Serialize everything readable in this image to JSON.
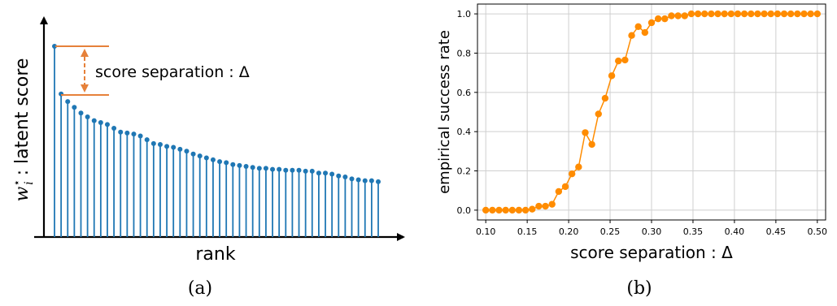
{
  "chart_data": [
    {
      "type": "stem",
      "panel_label": "(a)",
      "xlabel": "rank",
      "ylabel_symbol": "w",
      "ylabel_sub": "i",
      "ylabel_sup": "⋆",
      "ylabel_text": " : latent score",
      "annotation": "score separation : Δ",
      "values": [
        1.0,
        0.75,
        0.71,
        0.68,
        0.65,
        0.63,
        0.61,
        0.6,
        0.59,
        0.57,
        0.55,
        0.545,
        0.54,
        0.53,
        0.51,
        0.49,
        0.485,
        0.475,
        0.47,
        0.46,
        0.45,
        0.435,
        0.425,
        0.415,
        0.405,
        0.395,
        0.39,
        0.38,
        0.375,
        0.37,
        0.365,
        0.36,
        0.36,
        0.355,
        0.355,
        0.35,
        0.35,
        0.35,
        0.345,
        0.345,
        0.335,
        0.335,
        0.33,
        0.32,
        0.315,
        0.305,
        0.3,
        0.295,
        0.295,
        0.29
      ],
      "colors": {
        "stem": "#1f77b4",
        "annotation": "#e6813a",
        "axis": "#000000"
      }
    },
    {
      "type": "line",
      "panel_label": "(b)",
      "xlabel": "score separation : Δ",
      "ylabel": "empirical success rate",
      "xlim": [
        0.09,
        0.51
      ],
      "ylim": [
        -0.05,
        1.05
      ],
      "xticks": [
        "0.10",
        "0.15",
        "0.20",
        "0.25",
        "0.30",
        "0.35",
        "0.40",
        "0.45",
        "0.50"
      ],
      "yticks": [
        "0.0",
        "0.2",
        "0.4",
        "0.6",
        "0.8",
        "1.0"
      ],
      "grid": true,
      "x": [
        0.1,
        0.108,
        0.116,
        0.124,
        0.132,
        0.14,
        0.148,
        0.156,
        0.164,
        0.172,
        0.18,
        0.188,
        0.196,
        0.204,
        0.212,
        0.22,
        0.228,
        0.236,
        0.244,
        0.252,
        0.26,
        0.268,
        0.276,
        0.284,
        0.292,
        0.3,
        0.308,
        0.316,
        0.324,
        0.332,
        0.34,
        0.348,
        0.356,
        0.364,
        0.372,
        0.38,
        0.388,
        0.396,
        0.404,
        0.412,
        0.42,
        0.428,
        0.436,
        0.444,
        0.452,
        0.46,
        0.468,
        0.476,
        0.484,
        0.492,
        0.5
      ],
      "y": [
        0.0,
        0.0,
        0.0,
        0.0,
        0.0,
        0.0,
        0.0,
        0.005,
        0.02,
        0.02,
        0.03,
        0.095,
        0.12,
        0.185,
        0.22,
        0.395,
        0.335,
        0.49,
        0.57,
        0.685,
        0.76,
        0.765,
        0.89,
        0.935,
        0.905,
        0.955,
        0.975,
        0.975,
        0.99,
        0.99,
        0.99,
        1.0,
        1.0,
        1.0,
        1.0,
        1.0,
        1.0,
        1.0,
        1.0,
        1.0,
        1.0,
        1.0,
        1.0,
        1.0,
        1.0,
        1.0,
        1.0,
        1.0,
        1.0,
        1.0,
        1.0
      ],
      "colors": {
        "line": "#ff8c00",
        "grid": "#cfcfcf"
      }
    }
  ]
}
